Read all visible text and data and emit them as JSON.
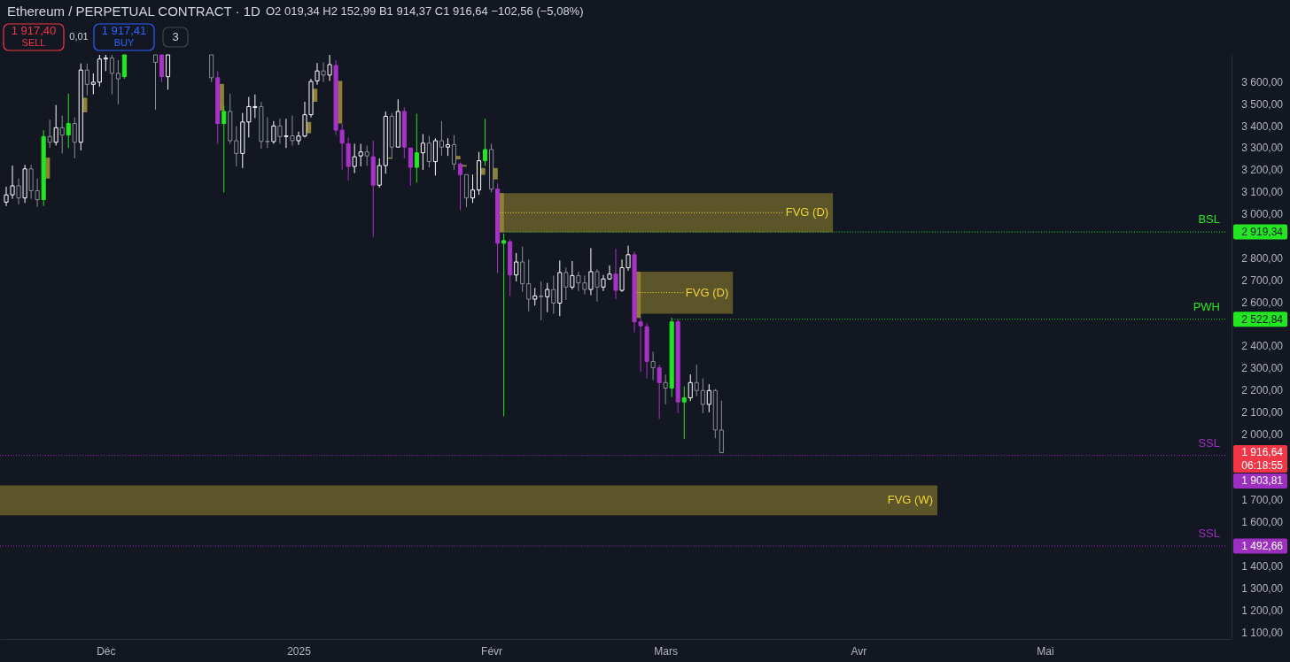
{
  "chart_data": {
    "type": "candlestick",
    "title": "Ethereum / PERPETUAL CONTRACT · 1D",
    "annotations": [
      "O2 019,34 H2 152,99 B1 914,37 C1 916,64 −102,56 (−5,08%)",
      "1 917,40",
      "SELL",
      "0,01",
      "1 917,41",
      "BUY",
      "3",
      "06:18:55",
      "1 916,64"
    ],
    "series": [
      {
        "type": "line",
        "color": "#f0d43a",
        "name": "FVG (W)",
        "x": [
          "2024-11-14",
          "2025-04-13T17:00"
        ],
        "values": [
          null,
          null
        ],
        "lower": [
          1632,
          1632
        ],
        "upper": [
          1768,
          1768
        ]
      },
      {
        "type": "line",
        "color": "#f0d43a",
        "name": "FVG (D)",
        "line_style": "dotted",
        "marker": "none",
        "x": [
          "2025-02-02T08:00",
          "2025-03-19T19:00",
          "2025-03-27T22:00"
        ],
        "values": [
          3007,
          3007,
          null
        ],
        "lower": [
          2918,
          2918,
          2918
        ],
        "upper": [
          3096,
          3096,
          3096
        ]
      },
      {
        "type": "line",
        "color": "#f0d43a",
        "name": "FVG (D)",
        "line_style": "dotted",
        "marker": "none",
        "x": [
          "2025-02-24T08:00",
          "2025-03-03T21:00",
          "2025-03-11T20:00"
        ],
        "values": [
          2644,
          2644,
          null
        ],
        "lower": [
          2548,
          2548,
          2548
        ],
        "upper": [
          2739,
          2739,
          2739
        ]
      },
      {
        "type": "bar",
        "color": "#8f8134",
        "x": [
          "2024-11-21T16:00",
          "2024-11-27T16:00",
          "2024-12-19T16:00",
          "2025-01-02T16:00",
          "2025-01-03T16:00",
          "2025-01-07T16:00",
          "2025-01-15T16:00",
          "2025-01-26T16:00",
          "2025-01-27T16:00",
          "2025-01-30T16:00",
          "2025-02-01T16:00",
          "2025-02-02T16:00",
          "2025-02-24T16:00"
        ],
        "base": [
          3162,
          3463,
          3470,
          3368,
          3511,
          3412,
          3252,
          3249,
          3216,
          3179,
          3158,
          2918,
          2529
        ],
        "values": [
          95,
          66,
          122,
          51,
          59,
          194,
          6,
          16,
          8,
          31,
          52,
          178,
          210
        ]
      },
      {
        "type": "line",
        "color": "#22e622",
        "name": "BSL",
        "line_style": "dotted",
        "marker": "none",
        "x": [
          "2025-02-03",
          "2025-05-30"
        ],
        "values": [
          2919.34,
          2919.34
        ],
        "value_labels": [
          null,
          "2 919,34"
        ]
      },
      {
        "type": "line",
        "color": "#22e622",
        "name": "PWH",
        "line_style": "dotted",
        "marker": "none",
        "x": [
          "2025-03-02",
          "2025-05-30"
        ],
        "values": [
          2522.84,
          2522.84
        ],
        "value_labels": [
          null,
          "2 522,84"
        ]
      },
      {
        "type": "line",
        "color": "#9c2fbf",
        "name": "SSL",
        "line_style": "dotted",
        "marker": "none",
        "x": [
          "2024-11-14",
          "2025-05-30"
        ],
        "values": [
          1903.81,
          1903.81
        ],
        "value_labels": [
          null,
          "1 903,81"
        ]
      },
      {
        "type": "line",
        "color": "#9c2fbf",
        "name": "SSL",
        "line_style": "dotted",
        "marker": "none",
        "x": [
          "2024-11-14",
          "2025-05-30"
        ],
        "values": [
          1492.66,
          1492.66
        ],
        "value_labels": [
          null,
          "1 492,66"
        ]
      },
      {
        "color": "#ffffff",
        "colors": [
          "#131722",
          "#131722",
          "#131722",
          "#131722",
          "#131722",
          "#131722",
          "#131722",
          "#131722",
          "#131722",
          "#131722",
          "#131722",
          "#131722",
          "#131722",
          "#131722",
          "#131722",
          "#131722",
          "#131722",
          "#131722",
          "#131722",
          "#131722",
          "#131722",
          "#131722",
          "#131722",
          "#131722",
          "#131722",
          "#131722",
          "#131722",
          "#131722",
          "#131722",
          "#131722",
          "#131722",
          "#131722",
          "#131722",
          "#131722",
          "#131722",
          "#131722",
          "#131722",
          "#131722",
          "#131722",
          "#131722",
          "#131722"
        ],
        "x": [
          "2024-11-15",
          "2024-11-16",
          "2024-11-18",
          "2024-11-23",
          "2024-11-27",
          "2024-11-29",
          "2024-11-30",
          "2024-12-01",
          "2024-12-11",
          "2024-12-23",
          "2024-12-24",
          "2024-12-25",
          "2024-12-28",
          "2024-12-30",
          "2025-01-01",
          "2025-01-02",
          "2025-01-03",
          "2025-01-04",
          "2025-01-06",
          "2025-01-10",
          "2025-01-11",
          "2025-01-14",
          "2025-01-15",
          "2025-01-17",
          "2025-01-21",
          "2025-01-23",
          "2025-01-25",
          "2025-01-29",
          "2025-01-30",
          "2025-02-05",
          "2025-02-08",
          "2025-02-10",
          "2025-02-12",
          "2025-02-14",
          "2025-02-17",
          "2025-02-19",
          "2025-02-20",
          "2025-02-22",
          "2025-02-23",
          "2025-03-05",
          "2025-03-08"
        ],
        "ohlc": [
          [
            3055,
            3125,
            3037,
            3088
          ],
          [
            3088,
            3221,
            3070,
            3129
          ],
          [
            3074,
            3224,
            3051,
            3206
          ],
          [
            3327,
            3496,
            3312,
            3393
          ],
          [
            3327,
            3685,
            3290,
            3655
          ],
          [
            3590,
            3640,
            3545,
            3600
          ],
          [
            3600,
            3724,
            3580,
            3705
          ],
          [
            3705,
            3724,
            3650,
            3710
          ],
          [
            3625,
            3724,
            3566,
            3724
          ],
          [
            3276,
            3460,
            3210,
            3419
          ],
          [
            3419,
            3533,
            3349,
            3489
          ],
          [
            3485,
            3544,
            3437,
            3489
          ],
          [
            3330,
            3423,
            3320,
            3401
          ],
          [
            3353,
            3434,
            3301,
            3356
          ],
          [
            3334,
            3375,
            3315,
            3355
          ],
          [
            3355,
            3511,
            3349,
            3452
          ],
          [
            3452,
            3615,
            3440,
            3603
          ],
          [
            3606,
            3687,
            3588,
            3651
          ],
          [
            3632,
            3724,
            3606,
            3680
          ],
          [
            3217,
            3320,
            3187,
            3261
          ],
          [
            3265,
            3320,
            3217,
            3283
          ],
          [
            3132,
            3254,
            3121,
            3221
          ],
          [
            3221,
            3467,
            3184,
            3445
          ],
          [
            3305,
            3522,
            3305,
            3467
          ],
          [
            3279,
            3364,
            3202,
            3323
          ],
          [
            3239,
            3345,
            3176,
            3334
          ],
          [
            3305,
            3345,
            3265,
            3316
          ],
          [
            3074,
            3180,
            3051,
            3110
          ],
          [
            3110,
            3283,
            3088,
            3243
          ],
          [
            2724,
            2824,
            2695,
            2783
          ],
          [
            2614,
            2665,
            2585,
            2629
          ],
          [
            2625,
            2688,
            2555,
            2658
          ],
          [
            2596,
            2790,
            2537,
            2735
          ],
          [
            2669,
            2787,
            2658,
            2721
          ],
          [
            2658,
            2846,
            2632,
            2739
          ],
          [
            2669,
            2724,
            2651,
            2706
          ],
          [
            2706,
            2768,
            2702,
            2728
          ],
          [
            2654,
            2794,
            2647,
            2757
          ],
          [
            2757,
            2857,
            2743,
            2816
          ],
          [
            2166,
            2272,
            2151,
            2235
          ],
          [
            2136,
            2228,
            2100,
            2199
          ]
        ]
      },
      {
        "color": "#8a8d98",
        "colors": [
          "#131722",
          "#131722",
          "#131722",
          "#131722",
          "#131722",
          "#131722",
          "#131722",
          "#131722",
          "#131722",
          "#131722",
          "#131722",
          "#131722",
          "#131722",
          "#131722",
          "#131722",
          "#131722",
          "#131722",
          "#131722",
          "#131722",
          "#131722",
          "#131722",
          "#131722",
          "#131722",
          "#131722",
          "#131722",
          "#131722",
          "#131722",
          "#131722",
          "#131722",
          "#131722",
          "#131722",
          "#131722",
          "#131722",
          "#131722",
          "#131722",
          "#131722",
          "#131722",
          "#131722",
          "#131722"
        ],
        "x": [
          "2024-11-17",
          "2024-11-19",
          "2024-11-20",
          "2024-11-22",
          "2024-11-24",
          "2024-11-26",
          "2024-11-28",
          "2024-12-02",
          "2024-12-03",
          "2024-12-09",
          "2024-12-18",
          "2024-12-21",
          "2024-12-22",
          "2024-12-26",
          "2024-12-27",
          "2024-12-29",
          "2024-12-31",
          "2025-01-05",
          "2025-01-12",
          "2025-01-16",
          "2025-01-22",
          "2025-01-24",
          "2025-01-26",
          "2025-01-28",
          "2025-02-01",
          "2025-02-06",
          "2025-02-07",
          "2025-02-09",
          "2025-02-11",
          "2025-02-13",
          "2025-02-15",
          "2025-02-16",
          "2025-02-18",
          "2025-02-27",
          "2025-03-01",
          "2025-03-06",
          "2025-03-07",
          "2025-03-09",
          "2025-03-10"
        ],
        "ohlc": [
          [
            3129,
            3162,
            3044,
            3074
          ],
          [
            3206,
            3224,
            3070,
            3107
          ],
          [
            3107,
            3162,
            3033,
            3066
          ],
          [
            3353,
            3430,
            3301,
            3327
          ],
          [
            3393,
            3448,
            3276,
            3360
          ],
          [
            3412,
            3440,
            3254,
            3327
          ],
          [
            3655,
            3685,
            3540,
            3590
          ],
          [
            3710,
            3724,
            3545,
            3640
          ],
          [
            3640,
            3700,
            3500,
            3615
          ],
          [
            3724,
            3724,
            3474,
            3690
          ],
          [
            3724,
            3724,
            3600,
            3620
          ],
          [
            3467,
            3548,
            3320,
            3334
          ],
          [
            3334,
            3400,
            3217,
            3276
          ],
          [
            3489,
            3511,
            3298,
            3331
          ],
          [
            3331,
            3441,
            3301,
            3330
          ],
          [
            3401,
            3434,
            3320,
            3353
          ],
          [
            3356,
            3448,
            3312,
            3334
          ],
          [
            3651,
            3690,
            3600,
            3632
          ],
          [
            3283,
            3312,
            3220,
            3265
          ],
          [
            3445,
            3460,
            3250,
            3305
          ],
          [
            3323,
            3356,
            3213,
            3239
          ],
          [
            3334,
            3423,
            3265,
            3305
          ],
          [
            3316,
            3360,
            3202,
            3228
          ],
          [
            3180,
            3180,
            3033,
            3074
          ],
          [
            3294,
            3320,
            3100,
            3114
          ],
          [
            2783,
            2853,
            2647,
            2684
          ],
          [
            2684,
            2794,
            2559,
            2614
          ],
          [
            2629,
            2695,
            2518,
            2625
          ],
          [
            2658,
            2721,
            2548,
            2596
          ],
          [
            2735,
            2757,
            2610,
            2669
          ],
          [
            2721,
            2739,
            2651,
            2688
          ],
          [
            2688,
            2721,
            2636,
            2658
          ],
          [
            2739,
            2750,
            2603,
            2669
          ],
          [
            2331,
            2375,
            2246,
            2302
          ],
          [
            2235,
            2272,
            2136,
            2210
          ],
          [
            2235,
            2316,
            2173,
            2199
          ],
          [
            2199,
            2254,
            2096,
            2136
          ],
          [
            2199,
            2206,
            1982,
            2020
          ],
          [
            2019.34,
            2152.99,
            1914.37,
            1916.64
          ]
        ]
      },
      {
        "color": "#22e622",
        "x": [
          "2024-11-21",
          "2024-11-25",
          "2024-12-04",
          "2024-12-20",
          "2025-01-20",
          "2025-01-31",
          "2025-02-03",
          "2025-03-02",
          "2025-03-04"
        ],
        "ohlc": [
          [
            3066,
            3382,
            3037,
            3353
          ],
          [
            3360,
            3548,
            3301,
            3412
          ],
          [
            3625,
            3724,
            3615,
            3724
          ],
          [
            3412,
            3493,
            3099,
            3467
          ],
          [
            3213,
            3456,
            3143,
            3279
          ],
          [
            3243,
            3434,
            3220,
            3294
          ],
          [
            2868,
            2912,
            2082,
            2880
          ],
          [
            2210,
            2530,
            2169,
            2511
          ],
          [
            2147,
            2217,
            1978,
            2166
          ]
        ]
      },
      {
        "color": "#a832c8",
        "x": [
          "2024-12-10",
          "2024-12-19",
          "2025-01-07",
          "2025-01-08",
          "2025-01-09",
          "2025-01-13",
          "2025-01-18",
          "2025-01-19",
          "2025-01-27",
          "2025-02-02",
          "2025-02-04",
          "2025-02-21",
          "2025-02-24",
          "2025-02-25",
          "2025-02-26",
          "2025-02-28",
          "2025-03-03"
        ],
        "ohlc": [
          [
            3724,
            3724,
            3600,
            3625
          ],
          [
            3620,
            3650,
            3320,
            3412
          ],
          [
            3676,
            3700,
            3360,
            3382
          ],
          [
            3382,
            3410,
            3203,
            3323
          ],
          [
            3320,
            3349,
            3154,
            3217
          ],
          [
            3261,
            3334,
            2897,
            3132
          ],
          [
            3467,
            3485,
            3254,
            3305
          ],
          [
            3301,
            3301,
            3129,
            3213
          ],
          [
            3228,
            3235,
            3018,
            3180
          ],
          [
            3114,
            3140,
            2732,
            2868
          ],
          [
            2875,
            2886,
            2629,
            2724
          ],
          [
            2728,
            2842,
            2614,
            2654
          ],
          [
            2816,
            2831,
            2463,
            2511
          ],
          [
            2511,
            2529,
            2283,
            2493
          ],
          [
            2489,
            2504,
            2254,
            2331
          ],
          [
            2302,
            2316,
            2070,
            2235
          ],
          [
            2511,
            2522,
            2096,
            2147
          ]
        ]
      }
    ],
    "xlim": [
      "2024-11-14",
      "2025-05-31"
    ],
    "xticks": [
      {
        "value": "2024-12-01",
        "label": "Déc"
      },
      {
        "value": "2025-01-01",
        "label": "2025"
      },
      {
        "value": "2025-02-01",
        "label": "Févr"
      },
      {
        "value": "2025-03-01",
        "label": "Mars"
      },
      {
        "value": "2025-04-01",
        "label": "Avr"
      },
      {
        "value": "2025-05-01",
        "label": "Mai"
      }
    ],
    "ylim": [
      1070,
      3724
    ],
    "yticks": [
      {
        "value": 3600,
        "label": "3 600,00"
      },
      {
        "value": 3500,
        "label": "3 500,00"
      },
      {
        "value": 3400,
        "label": "3 400,00"
      },
      {
        "value": 3300,
        "label": "3 300,00"
      },
      {
        "value": 3200,
        "label": "3 200,00"
      },
      {
        "value": 3100,
        "label": "3 100,00"
      },
      {
        "value": 3000,
        "label": "3 000,00"
      },
      {
        "value": 2800,
        "label": "2 800,00"
      },
      {
        "value": 2700,
        "label": "2 700,00"
      },
      {
        "value": 2600,
        "label": "2 600,00"
      },
      {
        "value": 2400,
        "label": "2 400,00"
      },
      {
        "value": 2300,
        "label": "2 300,00"
      },
      {
        "value": 2200,
        "label": "2 200,00"
      },
      {
        "value": 2100,
        "label": "2 100,00"
      },
      {
        "value": 2000,
        "label": "2 000,00"
      },
      {
        "value": 1700,
        "label": "1 700,00"
      },
      {
        "value": 1600,
        "label": "1 600,00"
      },
      {
        "value": 1400,
        "label": "1 400,00"
      },
      {
        "value": 1300,
        "label": "1 300,00"
      },
      {
        "value": 1200,
        "label": "1 200,00"
      },
      {
        "value": 1100,
        "label": "1 100,00"
      }
    ]
  }
}
